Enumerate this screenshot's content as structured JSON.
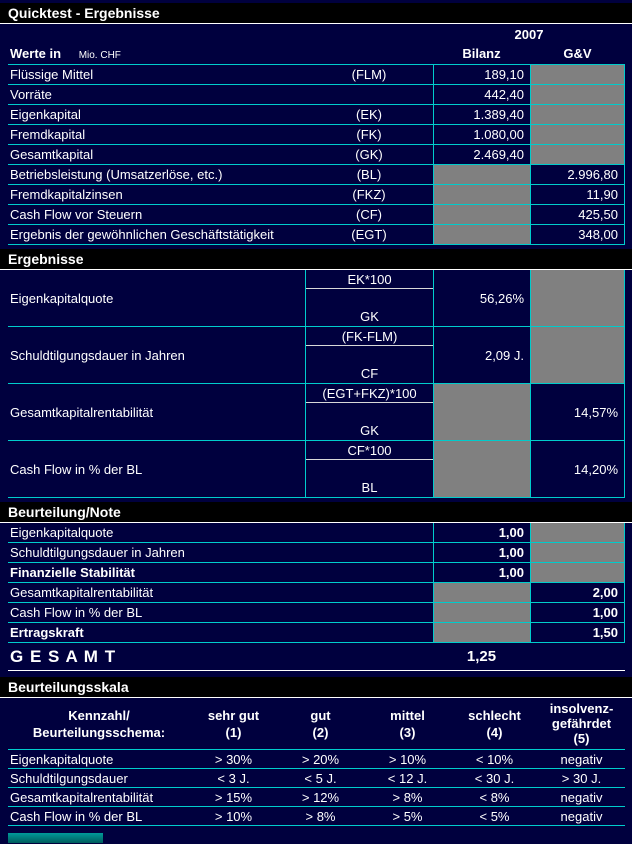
{
  "title": "Quicktest - Ergebnisse",
  "colors": {
    "background": "#00003E",
    "section_bar": "#000000",
    "grid_line": "#00CCCC",
    "blocked_cell": "#808080",
    "text": "#FFFFFF",
    "tab_strip": "#008080"
  },
  "header": {
    "werte_in": "Werte in",
    "unit": "Mio. CHF",
    "year": "2007",
    "col_bilanz": "Bilanz",
    "col_gv": "G&V"
  },
  "inputs": {
    "rows": [
      {
        "label": "Flüssige Mittel",
        "code": "(FLM)",
        "bilanz": "189,10"
      },
      {
        "label": "Vorräte",
        "code": "",
        "bilanz": "442,40"
      },
      {
        "label": "Eigenkapital",
        "code": "(EK)",
        "bilanz": "1.389,40"
      },
      {
        "label": "Fremdkapital",
        "code": "(FK)",
        "bilanz": "1.080,00"
      },
      {
        "label": "Gesamtkapital",
        "code": "(GK)",
        "bilanz": "2.469,40"
      },
      {
        "label": "Betriebsleistung (Umsatzerlöse, etc.)",
        "code": "(BL)",
        "gv": "2.996,80"
      },
      {
        "label": "Fremdkapitalzinsen",
        "code": "(FKZ)",
        "gv": "11,90"
      },
      {
        "label": "Cash Flow vor Steuern",
        "code": "(CF)",
        "gv": "425,50"
      },
      {
        "label": "Ergebnis der gewöhnlichen Geschäftstätigkeit",
        "code": "(EGT)",
        "gv": "348,00"
      }
    ]
  },
  "ergebnisse": {
    "section_title": "Ergebnisse",
    "rows": [
      {
        "label": "Eigenkapitalquote",
        "numerator": "EK*100",
        "denominator": "GK",
        "bilanz": "56,26%"
      },
      {
        "label": "Schuldtilgungsdauer in Jahren",
        "numerator": "(FK-FLM)",
        "denominator": "CF",
        "bilanz": "2,09 J."
      },
      {
        "label": "Gesamtkapitalrentabilität",
        "numerator": "(EGT+FKZ)*100",
        "denominator": "GK",
        "gv": "14,57%"
      },
      {
        "label": "Cash Flow in % der BL",
        "numerator": "CF*100",
        "denominator": "BL",
        "gv": "14,20%"
      }
    ]
  },
  "beurteilung": {
    "section_title": "Beurteilung/Note",
    "rows": [
      {
        "label": "Eigenkapitalquote",
        "bilanz": "1,00"
      },
      {
        "label": "Schuldtilgungsdauer in Jahren",
        "bilanz": "1,00"
      },
      {
        "label": "Finanzielle Stabilität",
        "bilanz": "1,00"
      },
      {
        "label": "Gesamtkapitalrentabilität",
        "gv": "2,00"
      },
      {
        "label": "Cash Flow in % der BL",
        "gv": "1,00"
      },
      {
        "label": "Ertragskraft",
        "gv": "1,50"
      }
    ],
    "gesamt_label": "G E S A M T",
    "gesamt_value": "1,25"
  },
  "skala": {
    "section_title": "Beurteilungsskala",
    "header": {
      "metric": [
        "Kennzahl/",
        "Beurteilungsschema:"
      ],
      "grades": [
        [
          "sehr gut",
          "(1)"
        ],
        [
          "gut",
          "(2)"
        ],
        [
          "mittel",
          "(3)"
        ],
        [
          "schlecht",
          "(4)"
        ],
        [
          "insolvenz-",
          "gefährdet",
          "(5)"
        ]
      ]
    },
    "rows": [
      {
        "label": "Eigenkapitalquote",
        "values": [
          "> 30%",
          "> 20%",
          "> 10%",
          "< 10%",
          "negativ"
        ]
      },
      {
        "label": "Schuldtilgungsdauer",
        "values": [
          "< 3 J.",
          "< 5 J.",
          "< 12 J.",
          "< 30 J.",
          "> 30 J."
        ]
      },
      {
        "label": "Gesamtkapitalrentabilität",
        "values": [
          "> 15%",
          "> 12%",
          "> 8%",
          "< 8%",
          "negativ"
        ]
      },
      {
        "label": "Cash Flow in % der BL",
        "values": [
          "> 10%",
          "> 8%",
          "> 5%",
          "< 5%",
          "negativ"
        ]
      }
    ]
  }
}
